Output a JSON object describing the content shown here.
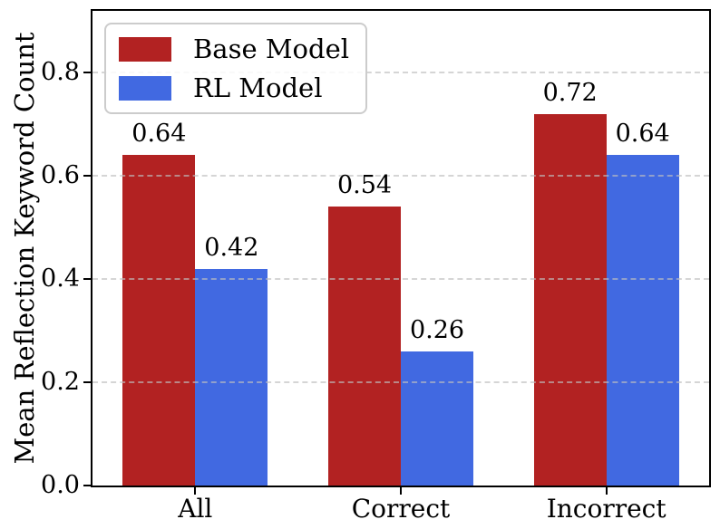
{
  "figure": {
    "background": "#ffffff",
    "axis_color": "#000000",
    "text_color": "#000000",
    "grid_color": "#bebebe"
  },
  "chart_data": {
    "type": "bar",
    "title": "",
    "xlabel": "",
    "ylabel": "Mean Reflection Keyword Count",
    "categories": [
      "All",
      "Correct",
      "Incorrect"
    ],
    "series": [
      {
        "name": "Base Model",
        "color": "#b22222",
        "values": [
          0.64,
          0.54,
          0.72
        ]
      },
      {
        "name": "RL Model",
        "color": "#4169e1",
        "values": [
          0.42,
          0.26,
          0.64
        ]
      }
    ],
    "bar_value_labels": [
      [
        "0.64",
        "0.54",
        "0.72"
      ],
      [
        "0.42",
        "0.26",
        "0.64"
      ]
    ],
    "ylim": [
      0,
      0.92
    ],
    "yticks": [
      "0.0",
      "0.2",
      "0.4",
      "0.6",
      "0.8"
    ],
    "grid": {
      "axis": "y",
      "linestyle": "dashed",
      "on": true,
      "above_bars": true
    },
    "legend": {
      "position": "upper-left",
      "entries": [
        "Base Model",
        "RL Model"
      ]
    }
  }
}
